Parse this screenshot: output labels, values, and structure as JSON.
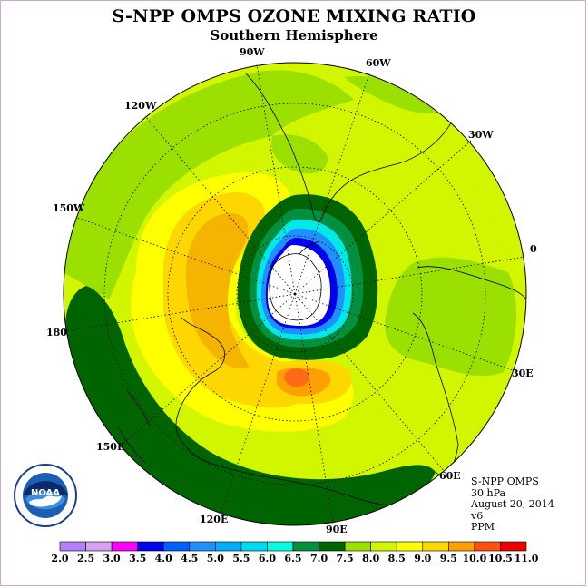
{
  "header": {
    "title": "S-NPP OMPS OZONE MIXING RATIO",
    "subtitle": "Southern Hemisphere"
  },
  "map": {
    "projection": "south-polar-stereographic",
    "longitude_labels": [
      "90W",
      "60W",
      "30W",
      "0",
      "30E",
      "60E",
      "90E",
      "120E",
      "150E",
      "180",
      "150W",
      "120W"
    ],
    "regions": [
      {
        "name": "antarctic-polar-cap",
        "color": "#ffffff"
      },
      {
        "name": "deep-blue-ring",
        "color": "#0000ee"
      },
      {
        "name": "blue-ring",
        "color": "#1e90ff"
      },
      {
        "name": "cyan-ring",
        "color": "#00e8e8"
      },
      {
        "name": "dark-green-ring",
        "color": "#006400"
      },
      {
        "name": "dark-green-band-pacific",
        "color": "#006400"
      },
      {
        "name": "orange-maximum",
        "color": "#f5b400"
      },
      {
        "name": "red-orange-maximum",
        "color": "#ff6a1a"
      }
    ]
  },
  "info": {
    "instrument": "S-NPP OMPS",
    "level": "30 hPa",
    "date": "August 20, 2014",
    "version": "v6",
    "units": "PPM"
  },
  "logo": {
    "text": "NOAA",
    "ring_text": "NATIONAL OCEANIC AND ATMOSPHERIC ADMINISTRATION · U.S. DEPARTMENT OF COMMERCE"
  },
  "colorbar": {
    "tick_labels": [
      "2.0",
      "2.5",
      "3.0",
      "3.5",
      "4.0",
      "4.5",
      "5.0",
      "5.5",
      "6.0",
      "6.5",
      "7.0",
      "7.5",
      "8.0",
      "8.5",
      "9.0",
      "9.5",
      "10.0",
      "10.5",
      "11.0"
    ],
    "colors": [
      "#b080ff",
      "#d8a0f0",
      "#ff00ff",
      "#0000ee",
      "#0060ff",
      "#1e90ff",
      "#00b0ff",
      "#00d8f0",
      "#00ffe0",
      "#009040",
      "#006400",
      "#9be000",
      "#d2f500",
      "#ffff00",
      "#ffd700",
      "#ff9f00",
      "#ff5010",
      "#ee0000",
      "#8b4513"
    ]
  }
}
